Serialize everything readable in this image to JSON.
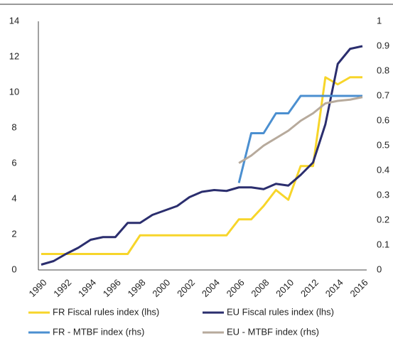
{
  "chart_data": {
    "type": "line",
    "x": [
      1990,
      1991,
      1992,
      1993,
      1994,
      1995,
      1996,
      1997,
      1998,
      1999,
      2000,
      2001,
      2002,
      2003,
      2004,
      2005,
      2006,
      2007,
      2008,
      2009,
      2010,
      2011,
      2012,
      2013,
      2014,
      2015,
      2016
    ],
    "xticks": [
      1990,
      1992,
      1994,
      1996,
      1998,
      2000,
      2002,
      2004,
      2006,
      2008,
      2010,
      2012,
      2014,
      2016
    ],
    "xlim": [
      1990,
      2016
    ],
    "ylim": [
      0,
      14
    ],
    "yticks": [
      0,
      2,
      4,
      6,
      8,
      10,
      12,
      14
    ],
    "y2lim": [
      0,
      1
    ],
    "y2ticks": [
      0,
      0.1,
      0.2,
      0.3,
      0.4,
      0.5,
      0.6,
      0.7,
      0.8,
      0.9,
      1
    ],
    "series": [
      {
        "name": "FR Fiscal rules index (lhs)",
        "color": "#f7d52a",
        "values": [
          0.9,
          0.9,
          0.9,
          0.9,
          0.9,
          0.9,
          0.9,
          0.9,
          1.95,
          1.95,
          1.95,
          1.95,
          1.95,
          1.95,
          1.95,
          1.95,
          2.85,
          2.85,
          3.6,
          4.5,
          3.95,
          5.85,
          5.85,
          10.85,
          10.45,
          10.85,
          10.85
        ]
      },
      {
        "name": "EU Fiscal rules index (lhs)",
        "color": "#2b2e6e",
        "values": [
          0.3,
          0.5,
          0.9,
          1.25,
          1.7,
          1.85,
          1.85,
          2.65,
          2.65,
          3.1,
          3.35,
          3.6,
          4.1,
          4.4,
          4.5,
          4.45,
          4.65,
          4.65,
          4.55,
          4.85,
          4.75,
          5.35,
          6.05,
          8.2,
          11.6,
          12.45,
          12.6
        ]
      },
      {
        "name": "FR - MTBF index (rhs)",
        "color": "#4b8fd0",
        "axis": "y2",
        "values": [
          null,
          null,
          null,
          null,
          null,
          null,
          null,
          null,
          null,
          null,
          null,
          null,
          null,
          null,
          null,
          null,
          0.35,
          0.55,
          0.55,
          0.63,
          0.63,
          0.7,
          0.7,
          0.7,
          0.7,
          0.7,
          0.7
        ]
      },
      {
        "name": "EU - MTBF index (rhs)",
        "color": "#b7aa9c",
        "axis": "y2",
        "values": [
          null,
          null,
          null,
          null,
          null,
          null,
          null,
          null,
          null,
          null,
          null,
          null,
          null,
          null,
          null,
          null,
          0.43,
          0.46,
          0.5,
          0.53,
          0.56,
          0.6,
          0.63,
          0.67,
          0.68,
          0.685,
          0.695
        ]
      }
    ]
  }
}
